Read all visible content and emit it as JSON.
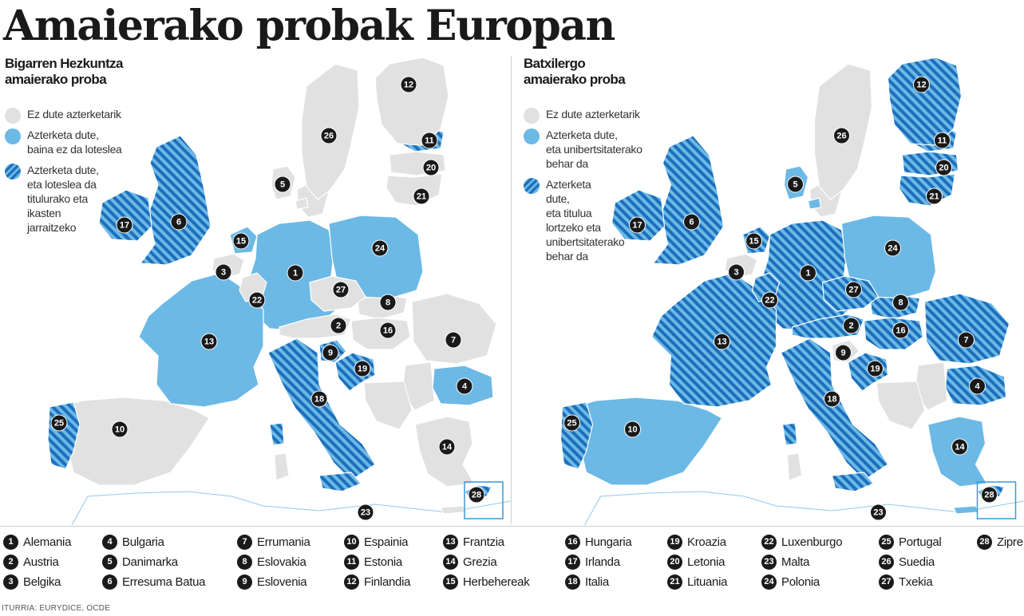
{
  "title": "Amaierako probak Europan",
  "source": "ITURRIA: EURYDICE, OCDE",
  "colors": {
    "none": "#e1e1e1",
    "exam": "#6cb9e6",
    "hatch_dark": "#1d6fbc",
    "marker": "#1a1a1a",
    "sea_line": "#8fc9ea"
  },
  "panels": [
    {
      "heading": "Bigarren Hezkuntza\namaierako proba",
      "legend": [
        {
          "swatch": "grey",
          "label": "Ez dute azterketarik"
        },
        {
          "swatch": "blue",
          "label": "Azterketa dute,\nbaina ez da loteslea"
        },
        {
          "swatch": "hatch",
          "label": "Azterketa dute,\neta loteslea da\ntitulurako eta\nikasten\njarraitzeko"
        }
      ],
      "status": {
        "1": "blue",
        "2": "grey",
        "3": "grey",
        "4": "blue",
        "5": "grey",
        "6": "hatch",
        "7": "grey",
        "8": "grey",
        "9": "hatch",
        "10": "grey",
        "11": "hatch",
        "12": "grey",
        "13": "blue",
        "14": "grey",
        "15": "blue",
        "16": "grey",
        "17": "hatch",
        "18": "hatch",
        "19": "hatch",
        "20": "grey",
        "21": "grey",
        "22": "grey",
        "23": "hatch",
        "24": "blue",
        "25": "hatch",
        "26": "grey",
        "27": "grey",
        "28": "hatch"
      }
    },
    {
      "heading": "Batxilergo\namaierako proba",
      "legend": [
        {
          "swatch": "grey",
          "label": "Ez dute azterketarik"
        },
        {
          "swatch": "blue",
          "label": "Azterketa dute,\neta unibertsitaterako\nbehar da"
        },
        {
          "swatch": "hatch",
          "label": "Azterketa\ndute,\neta titulua\nlortzeko eta\nunibertsitaterako\nbehar da"
        }
      ],
      "status": {
        "1": "hatch",
        "2": "hatch",
        "3": "grey",
        "4": "hatch",
        "5": "blue",
        "6": "hatch",
        "7": "hatch",
        "8": "hatch",
        "9": "grey",
        "10": "blue",
        "11": "hatch",
        "12": "hatch",
        "13": "hatch",
        "14": "blue",
        "15": "hatch",
        "16": "hatch",
        "17": "hatch",
        "18": "hatch",
        "19": "hatch",
        "20": "hatch",
        "21": "hatch",
        "22": "hatch",
        "23": "blue",
        "24": "blue",
        "25": "hatch",
        "26": "grey",
        "27": "hatch",
        "28": "hatch"
      }
    }
  ],
  "countries": [
    {
      "n": "1",
      "name": "Alemania"
    },
    {
      "n": "2",
      "name": "Austria"
    },
    {
      "n": "3",
      "name": "Belgika"
    },
    {
      "n": "4",
      "name": "Bulgaria"
    },
    {
      "n": "5",
      "name": "Danimarka"
    },
    {
      "n": "6",
      "name": "Erresuma Batua"
    },
    {
      "n": "7",
      "name": "Errumania"
    },
    {
      "n": "8",
      "name": "Eslovakia"
    },
    {
      "n": "9",
      "name": "Eslovenia"
    },
    {
      "n": "10",
      "name": "Espainia"
    },
    {
      "n": "11",
      "name": "Estonia"
    },
    {
      "n": "12",
      "name": "Finlandia"
    },
    {
      "n": "13",
      "name": "Frantzia"
    },
    {
      "n": "14",
      "name": "Grezia"
    },
    {
      "n": "15",
      "name": "Herbehereak"
    },
    {
      "n": "16",
      "name": "Hungaria"
    },
    {
      "n": "17",
      "name": "Irlanda"
    },
    {
      "n": "18",
      "name": "Italia"
    },
    {
      "n": "19",
      "name": "Kroazia"
    },
    {
      "n": "20",
      "name": "Letonia"
    },
    {
      "n": "21",
      "name": "Lituania"
    },
    {
      "n": "22",
      "name": "Luxenburgo"
    },
    {
      "n": "23",
      "name": "Malta"
    },
    {
      "n": "24",
      "name": "Polonia"
    },
    {
      "n": "25",
      "name": "Portugal"
    },
    {
      "n": "26",
      "name": "Suedia"
    },
    {
      "n": "27",
      "name": "Txekia"
    },
    {
      "n": "28",
      "name": "Zipre"
    }
  ]
}
